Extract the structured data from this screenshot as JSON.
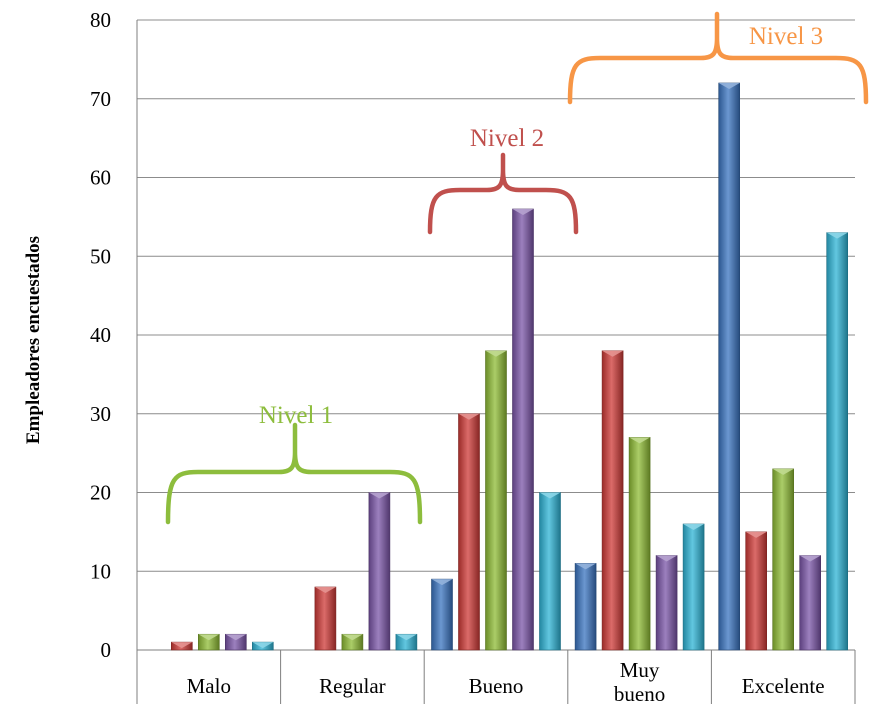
{
  "chart_data": {
    "type": "bar",
    "ylabel": "Empleadores encuestados",
    "xlabel": "",
    "ylim": [
      0,
      80
    ],
    "ytick_step": 10,
    "grid": true,
    "categories": [
      "Malo",
      "Regular",
      "Bueno",
      "Muy bueno",
      "Excelente"
    ],
    "series": [
      {
        "color": "#3a74c0",
        "values": [
          0,
          0,
          9,
          11,
          72
        ]
      },
      {
        "color": "#cf3a37",
        "values": [
          1,
          8,
          30,
          38,
          15
        ]
      },
      {
        "color": "#8fbc35",
        "values": [
          2,
          2,
          38,
          27,
          23
        ]
      },
      {
        "color": "#7b55a8",
        "values": [
          2,
          20,
          56,
          12,
          12
        ]
      },
      {
        "color": "#2eb4d6",
        "values": [
          1,
          2,
          20,
          16,
          53
        ]
      }
    ],
    "annotations": [
      {
        "text": "Nivel 1",
        "color": "#8dbd3d"
      },
      {
        "text": "Nivel 2",
        "color": "#c0504d"
      },
      {
        "text": "Nivel 3",
        "color": "#f79646"
      }
    ]
  }
}
